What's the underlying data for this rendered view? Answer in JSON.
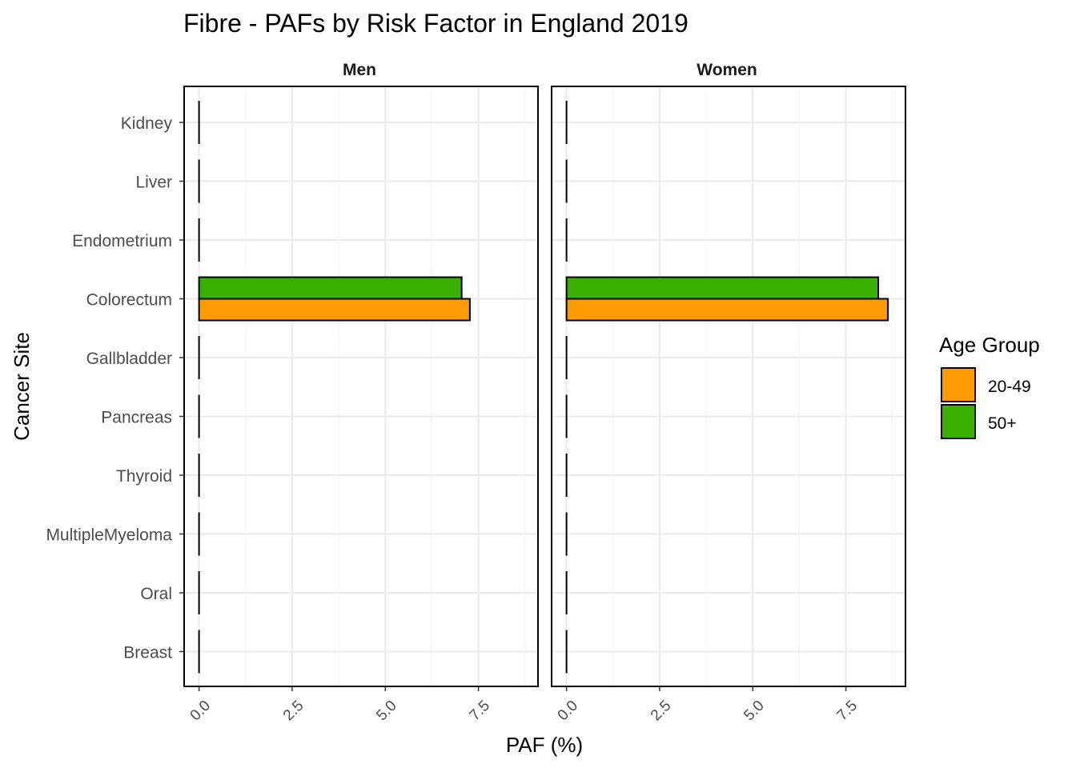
{
  "chart_data": {
    "type": "bar",
    "orientation": "horizontal",
    "title": "Fibre  - PAFs by Risk Factor in England 2019",
    "xlabel": "PAF (%)",
    "ylabel": "Cancer Site",
    "xlim": [
      -0.4,
      9.1
    ],
    "x_ticks": [
      "0.0",
      "2.5",
      "5.0",
      "7.5"
    ],
    "x_tick_values": [
      0,
      2.5,
      5,
      7.5
    ],
    "categories": [
      "Kidney",
      "Liver",
      "Endometrium",
      "Colorectum",
      "Gallbladder",
      "Pancreas",
      "Thyroid",
      "MultipleMyeloma",
      "Oral",
      "Breast"
    ],
    "legend": {
      "title": "Age Group",
      "placement": "right",
      "items": [
        {
          "label": "20-49",
          "color": "#ff9a00"
        },
        {
          "label": "50+",
          "color": "#38b000"
        }
      ]
    },
    "facets": [
      {
        "label": "Men",
        "series": [
          {
            "name": "50+",
            "values": [
              0,
              0,
              0,
              7.05,
              0,
              0,
              0,
              0,
              0,
              0
            ]
          },
          {
            "name": "20-49",
            "values": [
              0,
              0,
              0,
              7.27,
              0,
              0,
              0,
              0,
              0,
              0
            ]
          }
        ]
      },
      {
        "label": "Women",
        "series": [
          {
            "name": "50+",
            "values": [
              0,
              0,
              0,
              8.37,
              0,
              0,
              0,
              0,
              0,
              0
            ]
          },
          {
            "name": "20-49",
            "values": [
              0,
              0,
              0,
              8.63,
              0,
              0,
              0,
              0,
              0,
              0
            ]
          }
        ]
      }
    ],
    "grid": true
  }
}
